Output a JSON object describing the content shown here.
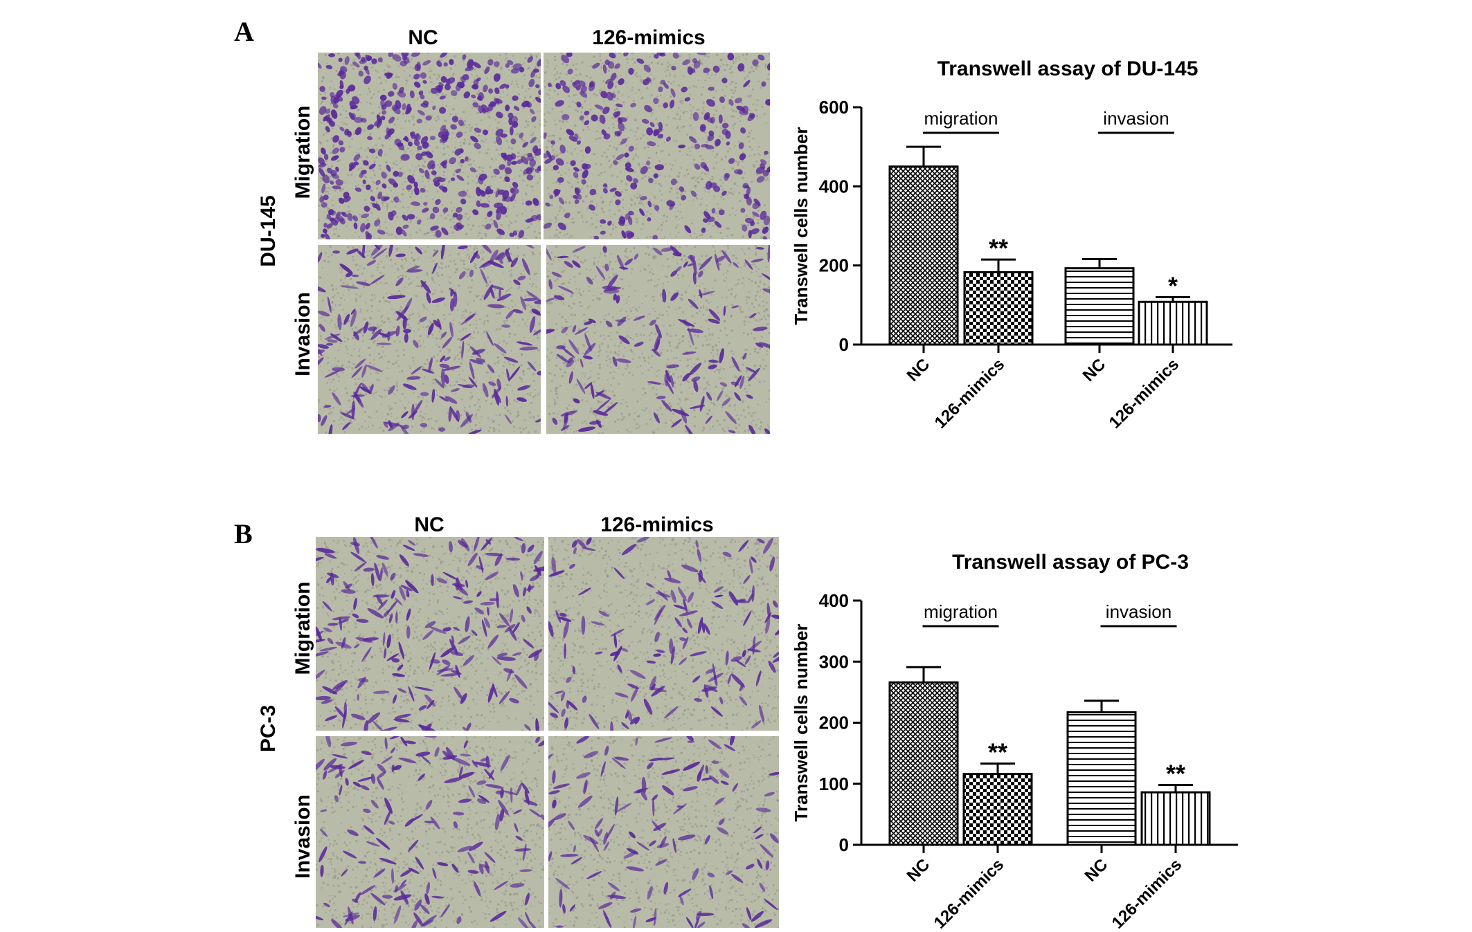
{
  "panels": [
    {
      "letter": "A",
      "cell_line": "DU-145",
      "col_headers": [
        "NC",
        "126-mimics"
      ],
      "row_labels": [
        "Migration",
        "Invasion"
      ]
    },
    {
      "letter": "B",
      "cell_line": "PC-3",
      "col_headers": [
        "NC",
        "126-mimics"
      ],
      "row_labels": [
        "Migration",
        "Invasion"
      ]
    }
  ],
  "colors": {
    "micro_background": "#b9bba9",
    "cell_stain": "#5a2a9a",
    "bar_stroke": "#000000"
  },
  "chart_data": [
    {
      "type": "bar",
      "title": "Transwell assay of DU-145",
      "ylabel": "Transwell cells number",
      "xlabel": "",
      "ylim": [
        0,
        600
      ],
      "yticks": [
        0,
        200,
        400,
        600
      ],
      "categories": [
        "NC",
        "126-mimics",
        "NC",
        "126-mimics"
      ],
      "groups": [
        "migration",
        "invasion"
      ],
      "values": [
        450,
        183,
        193,
        108
      ],
      "errors": [
        50,
        32,
        23,
        12
      ],
      "patterns": [
        "crosshatch",
        "checker",
        "horizontal",
        "vertical"
      ],
      "significance": [
        "",
        "**",
        "",
        "*"
      ],
      "grid": false
    },
    {
      "type": "bar",
      "title": "Transwell assay of PC-3",
      "ylabel": "Transwell cells number",
      "xlabel": "",
      "ylim": [
        0,
        400
      ],
      "yticks": [
        0,
        100,
        200,
        300,
        400
      ],
      "categories": [
        "NC",
        "126-mimics",
        "NC",
        "126-mimics"
      ],
      "groups": [
        "migration",
        "invasion"
      ],
      "values": [
        266,
        116,
        217,
        86
      ],
      "errors": [
        25,
        17,
        19,
        12
      ],
      "patterns": [
        "crosshatch",
        "checker",
        "horizontal",
        "vertical"
      ],
      "significance": [
        "",
        "**",
        "",
        "**"
      ],
      "grid": false
    }
  ]
}
